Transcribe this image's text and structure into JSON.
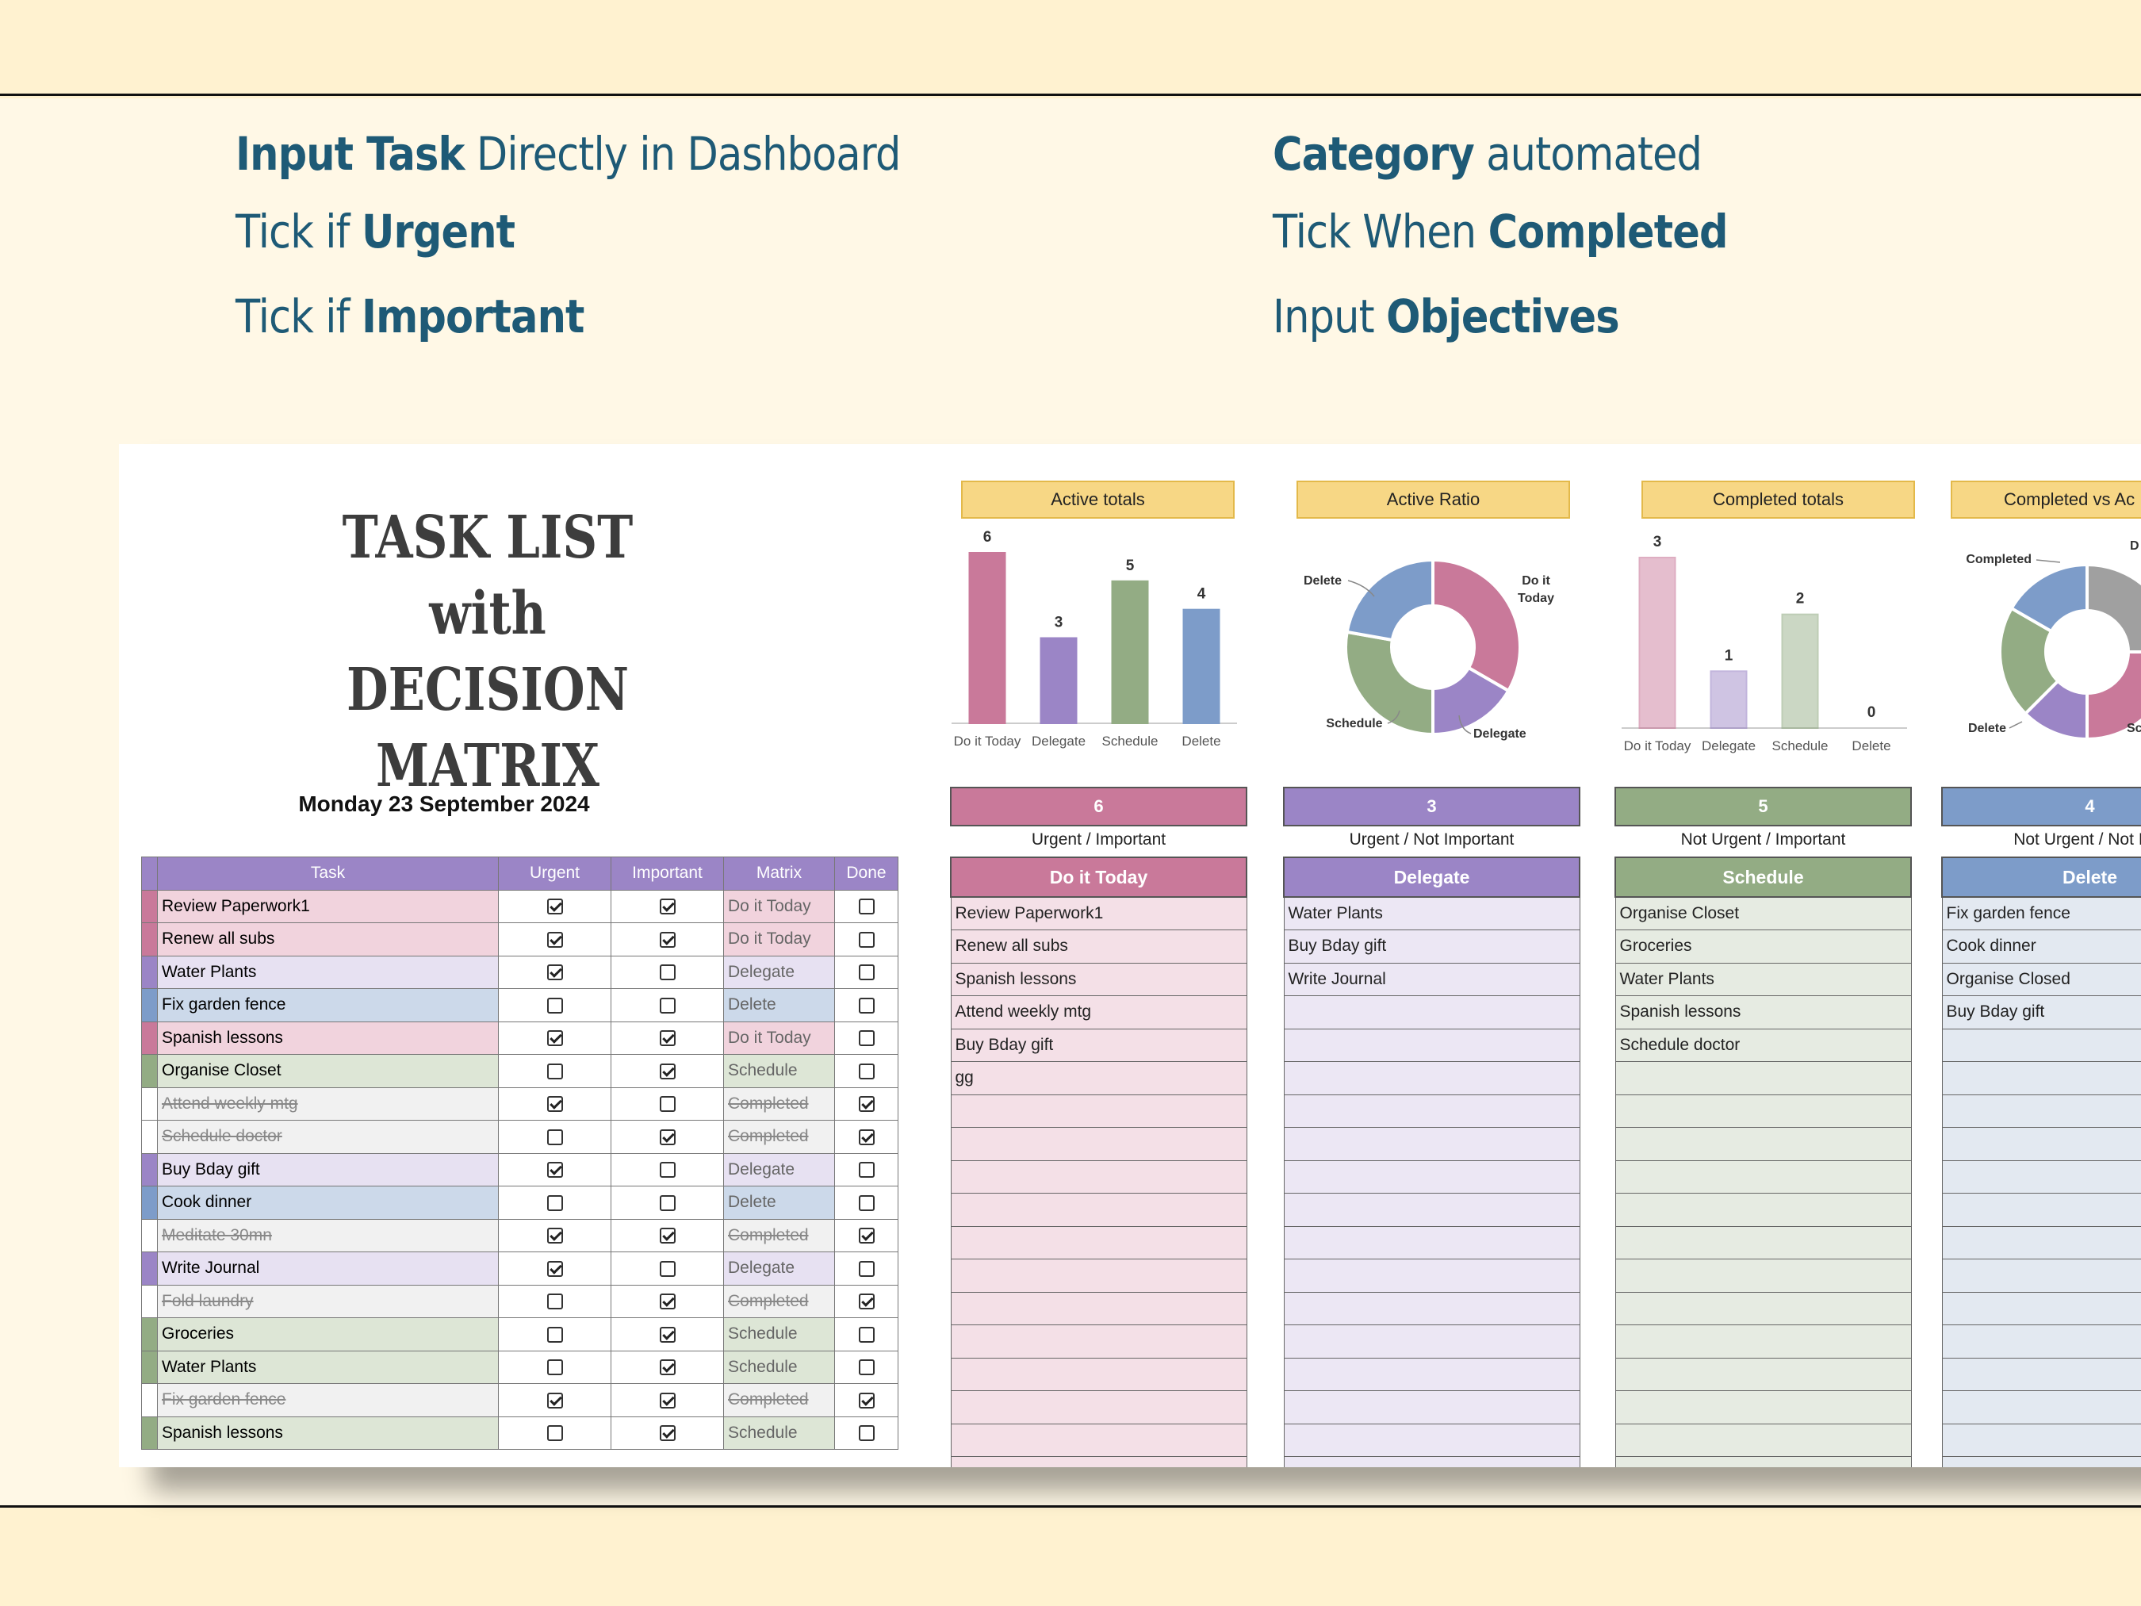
{
  "features": {
    "left": [
      {
        "bold": "Input  Task",
        "rest": " Directly in Dashboard",
        "bold_first": true
      },
      {
        "pre": "Tick if ",
        "bold": "Urgent"
      },
      {
        "pre": "Tick if ",
        "bold": "Important"
      }
    ],
    "right": [
      {
        "bold": "Category",
        "rest": " automated",
        "bold_first": true
      },
      {
        "pre": "Tick When ",
        "bold": "Completed"
      },
      {
        "pre": "Input ",
        "bold": "Objectives"
      }
    ]
  },
  "sheet": {
    "title_lines": [
      "TASK LIST",
      "with",
      "DECISION MATRIX"
    ],
    "date": "Monday 23 September 2024",
    "columns": [
      "Task",
      "Urgent",
      "Important",
      "Matrix",
      "Done"
    ],
    "rows": [
      {
        "task": "Review Paperwork1",
        "urgent": true,
        "important": true,
        "matrix": "Do it Today",
        "done": false
      },
      {
        "task": "Renew all subs",
        "urgent": true,
        "important": true,
        "matrix": "Do it Today",
        "done": false
      },
      {
        "task": "Water Plants",
        "urgent": true,
        "important": false,
        "matrix": "Delegate",
        "done": false
      },
      {
        "task": "Fix garden fence",
        "urgent": false,
        "important": false,
        "matrix": "Delete",
        "done": false
      },
      {
        "task": "Spanish lessons",
        "urgent": true,
        "important": true,
        "matrix": "Do it Today",
        "done": false
      },
      {
        "task": "Organise Closet",
        "urgent": false,
        "important": true,
        "matrix": "Schedule",
        "done": false
      },
      {
        "task": "Attend weekly mtg",
        "urgent": true,
        "important": false,
        "matrix": "Completed",
        "done": true
      },
      {
        "task": "Schedule doctor",
        "urgent": false,
        "important": true,
        "matrix": "Completed",
        "done": true
      },
      {
        "task": "Buy Bday gift",
        "urgent": true,
        "important": false,
        "matrix": "Delegate",
        "done": false
      },
      {
        "task": "Cook dinner",
        "urgent": false,
        "important": false,
        "matrix": "Delete",
        "done": false
      },
      {
        "task": "Meditate 30mn",
        "urgent": true,
        "important": true,
        "matrix": "Completed",
        "done": true
      },
      {
        "task": "Write Journal",
        "urgent": true,
        "important": false,
        "matrix": "Delegate",
        "done": false
      },
      {
        "task": "Fold laundry",
        "urgent": false,
        "important": true,
        "matrix": "Completed",
        "done": true
      },
      {
        "task": "Groceries",
        "urgent": false,
        "important": true,
        "matrix": "Schedule",
        "done": false
      },
      {
        "task": "Water Plants",
        "urgent": false,
        "important": true,
        "matrix": "Schedule",
        "done": false
      },
      {
        "task": "Fix garden fence",
        "urgent": true,
        "important": true,
        "matrix": "Completed",
        "done": true
      },
      {
        "task": "Spanish lessons",
        "urgent": false,
        "important": true,
        "matrix": "Schedule",
        "done": false
      }
    ]
  },
  "colors": {
    "do_it_today": "#c9799a",
    "delegate": "#9b85c6",
    "schedule": "#93ac84",
    "delete": "#7d9cc9",
    "completed": "#a0a0a0",
    "header": "#9b85c6"
  },
  "chart_data": [
    {
      "type": "bar",
      "title": "Active totals",
      "categories": [
        "Do it Today",
        "Delegate",
        "Schedule",
        "Delete"
      ],
      "values": [
        6,
        3,
        5,
        4
      ]
    },
    {
      "type": "pie",
      "title": "Active Ratio",
      "categories": [
        "Do it Today",
        "Delegate",
        "Schedule",
        "Delete"
      ],
      "values": [
        6,
        3,
        5,
        4
      ],
      "labels": [
        "Do it Today",
        "Delegate",
        "Schedule",
        "Delete"
      ]
    },
    {
      "type": "bar",
      "title": "Completed totals",
      "categories": [
        "Do it Today",
        "Delegate",
        "Schedule",
        "Delete"
      ],
      "values": [
        3,
        1,
        2,
        0
      ]
    },
    {
      "type": "pie",
      "title": "Completed vs Ac",
      "categories": [
        "Completed",
        "Do it Today",
        "Delegate",
        "Schedule",
        "Delete"
      ],
      "values": [
        6,
        6,
        3,
        5,
        4
      ],
      "labels": [
        "Completed",
        "D",
        "Delete",
        "Sc"
      ]
    }
  ],
  "quadrants": [
    {
      "count": "6",
      "sub": "Urgent / Important",
      "name": "Do it Today",
      "items": [
        "Review Paperwork1",
        "Renew all subs",
        "Spanish lessons",
        "Attend weekly mtg",
        "Buy Bday gift",
        "gg"
      ]
    },
    {
      "count": "3",
      "sub": "Urgent / Not Important",
      "name": "Delegate",
      "items": [
        "Water Plants",
        "Buy Bday gift",
        "Write Journal"
      ]
    },
    {
      "count": "5",
      "sub": "Not Urgent / Important",
      "name": "Schedule",
      "items": [
        "Organise Closet",
        "Groceries",
        "Water Plants",
        "Spanish lessons",
        "Schedule doctor"
      ]
    },
    {
      "count": "4",
      "sub": "Not Urgent / Not Imp",
      "name": "Delete",
      "items": [
        "Fix garden fence",
        "Cook dinner",
        "Organise Closed",
        "Buy Bday gift"
      ]
    }
  ]
}
